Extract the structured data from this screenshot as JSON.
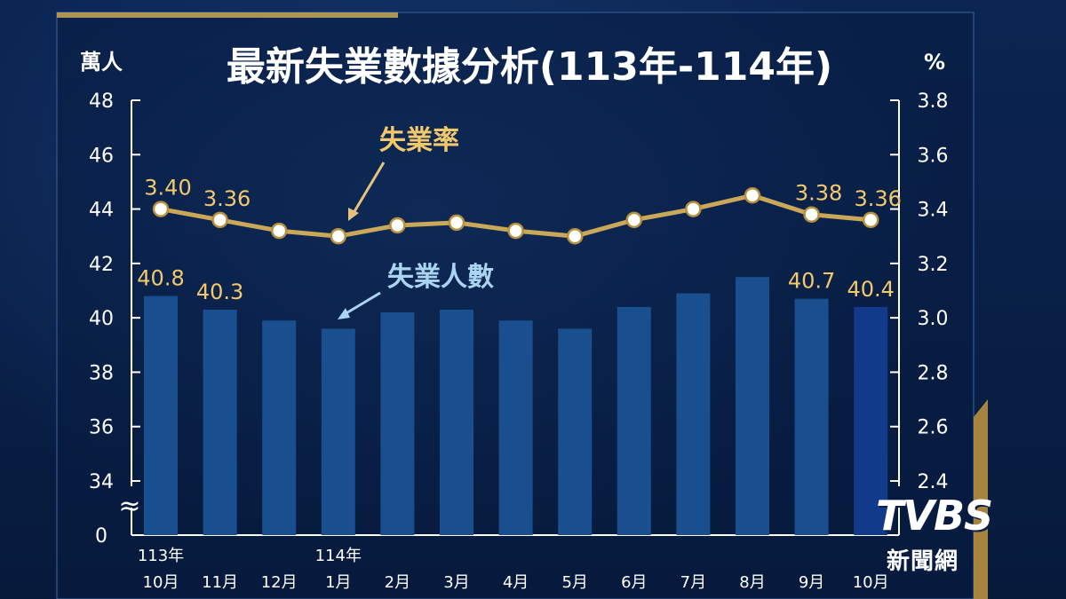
{
  "chart_data": {
    "type": "bar+line",
    "title": "最新失業數據分析(113年-114年)",
    "left_unit": "萬人",
    "right_unit": "%",
    "axis_break_symbol": "≈",
    "left_axis": {
      "ticks": [
        "48",
        "46",
        "44",
        "42",
        "40",
        "38",
        "36",
        "34"
      ],
      "zero_label": "0",
      "range": [
        34,
        48
      ]
    },
    "right_axis": {
      "ticks": [
        "3.8",
        "3.6",
        "3.4",
        "3.2",
        "3.0",
        "2.8",
        "2.6",
        "2.4"
      ],
      "range": [
        2.4,
        3.8
      ]
    },
    "categories": [
      {
        "year": "113年",
        "month": "10月"
      },
      {
        "year": "",
        "month": "11月"
      },
      {
        "year": "",
        "month": "12月"
      },
      {
        "year": "114年",
        "month": "1月"
      },
      {
        "year": "",
        "month": "2月"
      },
      {
        "year": "",
        "month": "3月"
      },
      {
        "year": "",
        "month": "4月"
      },
      {
        "year": "",
        "month": "5月"
      },
      {
        "year": "",
        "month": "6月"
      },
      {
        "year": "",
        "month": "7月"
      },
      {
        "year": "",
        "month": "8月"
      },
      {
        "year": "",
        "month": "9月"
      },
      {
        "year": "",
        "month": "10月"
      }
    ],
    "series": [
      {
        "name": "失業人數",
        "kind": "bar",
        "axis": "left",
        "color": "#1a4f8f",
        "highlight_color": "#123a8a",
        "values": [
          40.8,
          40.3,
          39.9,
          39.6,
          40.2,
          40.3,
          39.9,
          39.6,
          40.4,
          40.9,
          41.5,
          40.7,
          40.4
        ],
        "labels": [
          "40.8",
          "40.3",
          "",
          "",
          "",
          "",
          "",
          "",
          "",
          "",
          "",
          "40.7",
          "40.4"
        ]
      },
      {
        "name": "失業率",
        "kind": "line",
        "axis": "right",
        "color": "#c9a85a",
        "values": [
          3.4,
          3.36,
          3.32,
          3.3,
          3.34,
          3.35,
          3.32,
          3.3,
          3.36,
          3.4,
          3.45,
          3.38,
          3.36
        ],
        "labels": [
          "3.40",
          "3.36",
          "",
          "",
          "",
          "",
          "",
          "",
          "",
          "",
          "",
          "3.38",
          "3.36"
        ]
      }
    ]
  },
  "logo": {
    "word": "TVBS",
    "sub": "新聞網"
  },
  "colors": {
    "gold": "#c9a85a",
    "label_gold": "#f3c96b",
    "bar_label_blue": "#a9d4f2",
    "text_white": "#ffffff"
  }
}
